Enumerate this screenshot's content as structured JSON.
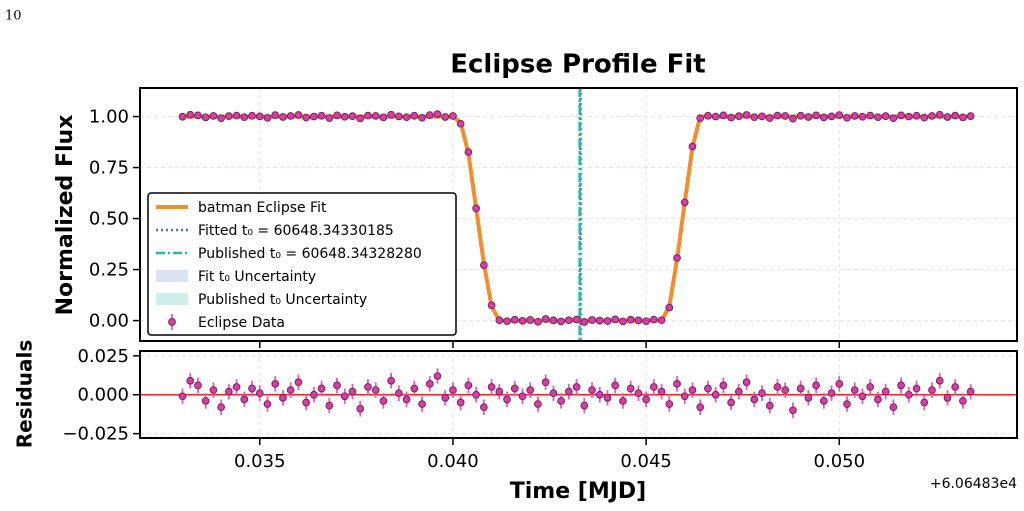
{
  "page_label": "10",
  "chart_data": [
    {
      "type": "line",
      "title": "Eclipse Profile Fit",
      "ylabel": "Normalized Flux",
      "xlim": [
        0.0319,
        0.0546
      ],
      "xticks": [
        0.035,
        {
          "value": 0.04,
          "label": "0.040"
        },
        0.045,
        {
          "value": 0.05,
          "label": "0.050"
        }
      ],
      "ylim": [
        -0.1,
        1.14
      ],
      "yticks": [
        {
          "value": 0,
          "label": "0.00"
        },
        0.25,
        {
          "value": 0.5,
          "label": "0.50"
        },
        0.75,
        {
          "value": 1,
          "label": "1.00"
        }
      ],
      "grid": true,
      "legend": "lower left",
      "series": [
        {
          "name": "batman Eclipse Fit",
          "type": "line",
          "color": "#f28e2b",
          "x": [
            0.033,
            0.04,
            0.0402,
            0.0404,
            0.0406,
            0.0408,
            0.041,
            0.0412,
            0.0454,
            0.0456,
            0.0458,
            0.046,
            0.0462,
            0.0464,
            0.0534
          ],
          "values": [
            1,
            1,
            0.97,
            0.82,
            0.55,
            0.28,
            0.07,
            0,
            0,
            0.07,
            0.3,
            0.58,
            0.85,
            1,
            1
          ]
        },
        {
          "name": "Eclipse Data",
          "type": "errorbar",
          "color": "#d63ea6",
          "yerr": 0.005,
          "x": [
            0.033,
            0.0332,
            0.0334,
            0.0336,
            0.0338,
            0.034,
            0.0342,
            0.0344,
            0.0346,
            0.0348,
            0.035,
            0.0352,
            0.0354,
            0.0356,
            0.0358,
            0.036,
            0.0362,
            0.0364,
            0.0366,
            0.0368,
            0.037,
            0.0372,
            0.0374,
            0.0376,
            0.0378,
            0.038,
            0.0382,
            0.0384,
            0.0386,
            0.0388,
            0.039,
            0.0392,
            0.0394,
            0.0396,
            0.0398,
            0.04,
            0.0402,
            0.0404,
            0.0406,
            0.0408,
            0.041,
            0.0412,
            0.0414,
            0.0416,
            0.0418,
            0.042,
            0.0422,
            0.0424,
            0.0426,
            0.0428,
            0.043,
            0.0432,
            0.0434,
            0.0436,
            0.0438,
            0.044,
            0.0442,
            0.0444,
            0.0446,
            0.0448,
            0.045,
            0.0452,
            0.0454,
            0.0456,
            0.0458,
            0.046,
            0.0462,
            0.0464,
            0.0466,
            0.0468,
            0.047,
            0.0472,
            0.0474,
            0.0476,
            0.0478,
            0.048,
            0.0482,
            0.0484,
            0.0486,
            0.0488,
            0.049,
            0.0492,
            0.0494,
            0.0496,
            0.0498,
            0.05,
            0.0502,
            0.0504,
            0.0506,
            0.0508,
            0.051,
            0.0512,
            0.0514,
            0.0516,
            0.0518,
            0.052,
            0.0522,
            0.0524,
            0.0526,
            0.0528,
            0.053,
            0.0532,
            0.0534
          ],
          "values": [
            0.999,
            1.009,
            1.006,
            0.996,
            1.003,
            0.992,
            1.002,
            1.005,
            0.997,
            1.004,
            1.001,
            0.994,
            1.007,
            0.998,
            1.003,
            1.008,
            0.995,
            1.0,
            1.004,
            0.993,
            1.006,
            0.999,
            1.002,
            0.991,
            1.005,
            1.003,
            0.996,
            1.009,
            1.001,
            0.997,
            1.004,
            0.994,
            1.007,
            1.012,
            0.998,
            1.003,
            0.965,
            0.826,
            0.55,
            0.272,
            0.075,
            0.002,
            -0.003,
            0.004,
            -0.001,
            0.003,
            -0.006,
            0.008,
            0.001,
            -0.004,
            0.002,
            0.005,
            -0.007,
            0.003,
            0.0,
            -0.002,
            0.006,
            -0.004,
            0.004,
            0.001,
            -0.003,
            0.005,
            0.002,
            0.064,
            0.307,
            0.579,
            0.853,
            0.992,
            1.004,
            1.0,
            1.006,
            0.995,
            1.002,
            1.008,
            0.997,
            1.001,
            0.993,
            1.005,
            1.003,
            0.99,
            1.004,
            0.998,
            1.006,
            0.996,
            1.001,
            1.007,
            0.994,
            1.003,
            0.999,
            1.005,
            0.997,
            1.002,
            0.992,
            1.006,
            1.0,
            1.004,
            0.995,
            1.003,
            1.009,
            0.998,
            1.005,
            0.996,
            1.002
          ]
        }
      ],
      "vlines": [
        {
          "name": "Fitted t₀ = 60648.34330185",
          "x": 0.04330185,
          "color": "#4c72b0",
          "style": "dotted"
        },
        {
          "name": "Published t₀ = 60648.34328280",
          "x": 0.0432828,
          "color": "#2ab7a9",
          "style": "dashdot"
        }
      ],
      "spans": [
        {
          "name": "Fit t₀ Uncertainty",
          "range": [
            0.04327,
            0.04333
          ],
          "color": "#dde2f2"
        },
        {
          "name": "Published t₀ Uncertainty",
          "range": [
            0.04322,
            0.04334
          ],
          "color": "#cdeeea"
        }
      ]
    },
    {
      "type": "scatter",
      "ylabel": "Residuals",
      "xlabel": "Time [MJD]",
      "x_offset_label": "+6.06483e4",
      "xlim": [
        0.0319,
        0.0546
      ],
      "xticks": [
        0.035,
        {
          "value": 0.04,
          "label": "0.040"
        },
        0.045,
        {
          "value": 0.05,
          "label": "0.050"
        }
      ],
      "ylim": [
        -0.0278,
        0.0281
      ],
      "yticks": [
        {
          "value": -0.025,
          "label": "−0.025"
        },
        {
          "value": 0,
          "label": "0.000"
        },
        {
          "value": 0.025,
          "label": "0.025"
        }
      ],
      "grid": true,
      "hline": {
        "value": 0,
        "color": "#ff2020"
      },
      "series": [
        {
          "name": "Residuals",
          "type": "errorbar",
          "color": "#d63ea6",
          "yerr": 0.005,
          "x": [
            0.033,
            0.0332,
            0.0334,
            0.0336,
            0.0338,
            0.034,
            0.0342,
            0.0344,
            0.0346,
            0.0348,
            0.035,
            0.0352,
            0.0354,
            0.0356,
            0.0358,
            0.036,
            0.0362,
            0.0364,
            0.0366,
            0.0368,
            0.037,
            0.0372,
            0.0374,
            0.0376,
            0.0378,
            0.038,
            0.0382,
            0.0384,
            0.0386,
            0.0388,
            0.039,
            0.0392,
            0.0394,
            0.0396,
            0.0398,
            0.04,
            0.0402,
            0.0404,
            0.0406,
            0.0408,
            0.041,
            0.0412,
            0.0414,
            0.0416,
            0.0418,
            0.042,
            0.0422,
            0.0424,
            0.0426,
            0.0428,
            0.043,
            0.0432,
            0.0434,
            0.0436,
            0.0438,
            0.044,
            0.0442,
            0.0444,
            0.0446,
            0.0448,
            0.045,
            0.0452,
            0.0454,
            0.0456,
            0.0458,
            0.046,
            0.0462,
            0.0464,
            0.0466,
            0.0468,
            0.047,
            0.0472,
            0.0474,
            0.0476,
            0.0478,
            0.048,
            0.0482,
            0.0484,
            0.0486,
            0.0488,
            0.049,
            0.0492,
            0.0494,
            0.0496,
            0.0498,
            0.05,
            0.0502,
            0.0504,
            0.0506,
            0.0508,
            0.051,
            0.0512,
            0.0514,
            0.0516,
            0.0518,
            0.052,
            0.0522,
            0.0524,
            0.0526,
            0.0528,
            0.053,
            0.0532,
            0.0534
          ],
          "values": [
            -0.001,
            0.009,
            0.006,
            -0.004,
            0.003,
            -0.008,
            0.002,
            0.005,
            -0.003,
            0.004,
            0.001,
            -0.006,
            0.007,
            -0.002,
            0.003,
            0.008,
            -0.005,
            0.0,
            0.004,
            -0.007,
            0.006,
            -0.001,
            0.002,
            -0.009,
            0.005,
            0.003,
            -0.004,
            0.009,
            0.001,
            -0.003,
            0.004,
            -0.006,
            0.007,
            0.012,
            -0.002,
            0.003,
            -0.005,
            0.006,
            0.0,
            -0.008,
            0.005,
            0.002,
            -0.003,
            0.004,
            -0.001,
            0.003,
            -0.006,
            0.008,
            0.001,
            -0.004,
            0.002,
            0.005,
            -0.007,
            0.003,
            0.0,
            -0.002,
            0.006,
            -0.004,
            0.004,
            0.001,
            -0.003,
            0.005,
            0.002,
            -0.006,
            0.007,
            -0.001,
            0.003,
            -0.008,
            0.004,
            0.0,
            0.006,
            -0.005,
            0.002,
            0.008,
            -0.003,
            0.001,
            -0.007,
            0.005,
            0.003,
            -0.01,
            0.004,
            -0.002,
            0.006,
            -0.004,
            0.001,
            0.007,
            -0.006,
            0.003,
            -0.001,
            0.005,
            -0.003,
            0.002,
            -0.008,
            0.006,
            0.0,
            0.004,
            -0.005,
            0.003,
            0.009,
            -0.002,
            0.005,
            -0.004,
            0.002
          ]
        }
      ]
    }
  ]
}
